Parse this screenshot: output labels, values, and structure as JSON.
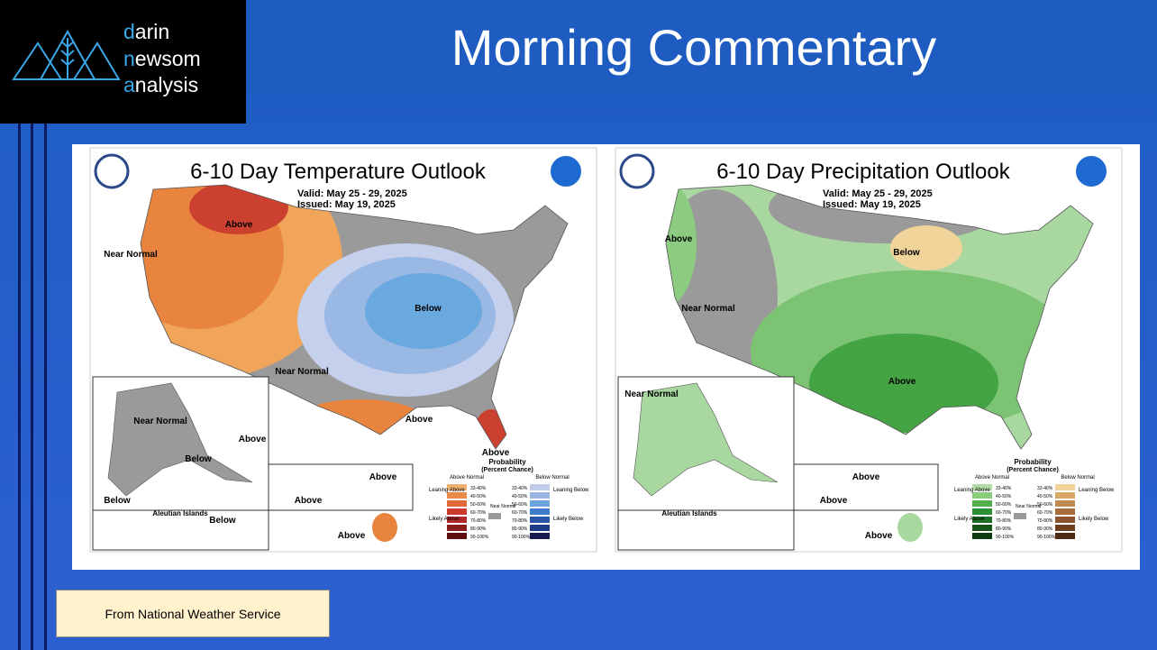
{
  "logo": {
    "line1": "darin",
    "line2": "newsom",
    "line3": "analysis"
  },
  "header": {
    "title": "Morning Commentary"
  },
  "maps": [
    {
      "title": "6-10 Day Temperature Outlook",
      "valid": "Valid:  May 25 - 29, 2025",
      "issued": "Issued:  May 19, 2025",
      "labels": [
        "Above",
        "Near Normal",
        "Below",
        "Near Normal",
        "Above",
        "Above",
        "Above",
        "Near Normal",
        "Below",
        "Below",
        "Aleutian Islands",
        "Below",
        "Above",
        "Above",
        "Above"
      ],
      "above_colors": [
        "#f0b070",
        "#e88c48",
        "#e06a38",
        "#cc3a2c",
        "#b02828",
        "#8a1e1e",
        "#5e1010"
      ],
      "below_colors": [
        "#c0cce8",
        "#98b4e0",
        "#6aa4dc",
        "#3c7cc8",
        "#2a56a8",
        "#1e3c84",
        "#161c50"
      ]
    },
    {
      "title": "6-10 Day Precipitation Outlook",
      "valid": "Valid:  May 25 - 29, 2025",
      "issued": "Issued:  May 19, 2025",
      "labels": [
        "Above",
        "Near Normal",
        "Below",
        "Above",
        "Near Normal",
        "Aleutian Islands",
        "Above",
        "Above",
        "Above"
      ],
      "above_colors": [
        "#b4dca8",
        "#88cc7c",
        "#54b04c",
        "#2e9034",
        "#1e7024",
        "#165418",
        "#0e3a10"
      ],
      "below_colors": [
        "#f0d49a",
        "#d8a868",
        "#c08a50",
        "#a86c3c",
        "#8c542c",
        "#6c3e20",
        "#4c2a14"
      ]
    }
  ],
  "legend": {
    "title": "Probability",
    "subtitle": "(Percent Chance)",
    "above_header": "Above Normal",
    "below_header": "Below Normal",
    "near": "Near Normal",
    "leaning_above": "Leaning Above",
    "likely_above": "Likely Above",
    "leaning_below": "Leaning Below",
    "likely_below": "Likely Below",
    "ranges": [
      "33-40%",
      "40-50%",
      "50-60%",
      "60-70%",
      "70-80%",
      "80-90%",
      "90-100%"
    ]
  },
  "footer": {
    "source": "From National Weather Service"
  }
}
